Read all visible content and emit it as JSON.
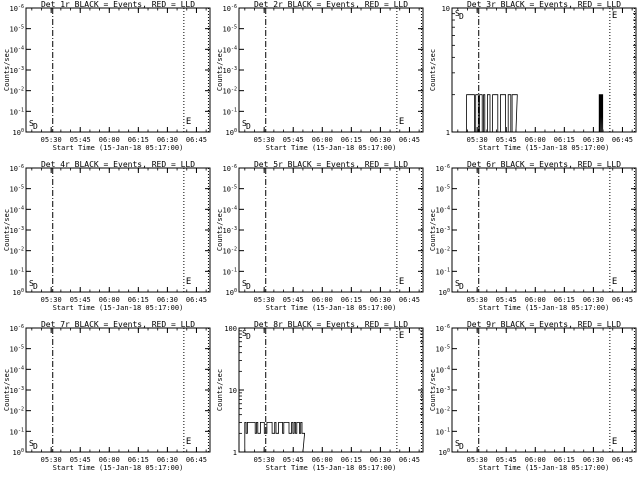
{
  "chart_data": [
    {
      "type": "line",
      "title": "Det 1r BLACK = Events, RED = LLD",
      "xlabel": "Start Time (15-Jan-18 05:17:00)",
      "ylabel": "Counts/sec",
      "x_ticks": [
        "05:30",
        "05:45",
        "06:00",
        "06:15",
        "06:30",
        "06:45"
      ],
      "y_scale": "log",
      "ylim": [
        1,
        1e-06
      ],
      "y_ticks": [
        "10^0",
        "10^-1",
        "10^-2",
        "10^-3",
        "10^-4",
        "10^-5",
        "10^-6"
      ],
      "markers": {
        "start_label": "S",
        "dash_label": "D",
        "end_label": "E"
      },
      "series": []
    },
    {
      "type": "line",
      "title": "Det 2r BLACK = Events, RED = LLD",
      "xlabel": "Start Time (15-Jan-18 05:17:00)",
      "ylabel": "Counts/sec",
      "x_ticks": [
        "05:30",
        "05:45",
        "06:00",
        "06:15",
        "06:30",
        "06:45"
      ],
      "y_scale": "log",
      "ylim": [
        1,
        1e-06
      ],
      "y_ticks": [
        "10^0",
        "10^-1",
        "10^-2",
        "10^-3",
        "10^-4",
        "10^-5",
        "10^-6"
      ],
      "markers": {
        "start_label": "S",
        "dash_label": "D",
        "end_label": "E"
      },
      "series": []
    },
    {
      "type": "line",
      "title": "Det 3r BLACK = Events, RED = LLD",
      "xlabel": "Start Time (15-Jan-18 05:17:00)",
      "ylabel": "Counts/sec",
      "x_ticks": [
        "05:30",
        "05:45",
        "06:00",
        "06:15",
        "06:30",
        "06:45"
      ],
      "y_scale": "log",
      "ylim": [
        1,
        10
      ],
      "y_ticks": [
        "1",
        "10"
      ],
      "markers": {
        "start_label": "S",
        "dash_label": "D",
        "end_label": "E"
      },
      "series": [
        {
          "kind": "burst",
          "level": 2,
          "x_start_min": 5.5,
          "x_end_min": 33,
          "extra_start_min": 76,
          "extra_end_min": 78
        }
      ]
    },
    {
      "type": "line",
      "title": "Det 4r BLACK = Events, RED = LLD",
      "xlabel": "Start Time (15-Jan-18 05:17:00)",
      "ylabel": "Counts/sec",
      "x_ticks": [
        "05:30",
        "05:45",
        "06:00",
        "06:15",
        "06:30",
        "06:45"
      ],
      "y_scale": "log",
      "ylim": [
        1,
        1e-06
      ],
      "y_ticks": [
        "10^0",
        "10^-1",
        "10^-2",
        "10^-3",
        "10^-4",
        "10^-5",
        "10^-6"
      ],
      "markers": {
        "start_label": "S",
        "dash_label": "D",
        "end_label": "E"
      },
      "series": []
    },
    {
      "type": "line",
      "title": "Det 5r BLACK = Events, RED = LLD",
      "xlabel": "Start Time (15-Jan-18 05:17:00)",
      "ylabel": "Counts/sec",
      "x_ticks": [
        "05:30",
        "05:45",
        "06:00",
        "06:15",
        "06:30",
        "06:45"
      ],
      "y_scale": "log",
      "ylim": [
        1,
        1e-06
      ],
      "y_ticks": [
        "10^0",
        "10^-1",
        "10^-2",
        "10^-3",
        "10^-4",
        "10^-5",
        "10^-6"
      ],
      "markers": {
        "start_label": "S",
        "dash_label": "D",
        "end_label": "E"
      },
      "series": []
    },
    {
      "type": "line",
      "title": "Det 6r BLACK = Events, RED = LLD",
      "xlabel": "Start Time (15-Jan-18 05:17:00)",
      "ylabel": "Counts/sec",
      "x_ticks": [
        "05:30",
        "05:45",
        "06:00",
        "06:15",
        "06:30",
        "06:45"
      ],
      "y_scale": "log",
      "ylim": [
        1,
        1e-06
      ],
      "y_ticks": [
        "10^0",
        "10^-1",
        "10^-2",
        "10^-3",
        "10^-4",
        "10^-5",
        "10^-6"
      ],
      "markers": {
        "start_label": "S",
        "dash_label": "D",
        "end_label": "E"
      },
      "series": []
    },
    {
      "type": "line",
      "title": "Det 7r BLACK = Events, RED = LLD",
      "xlabel": "Start Time (15-Jan-18 05:17:00)",
      "ylabel": "Counts/sec",
      "x_ticks": [
        "05:30",
        "05:45",
        "06:00",
        "06:15",
        "06:30",
        "06:45"
      ],
      "y_scale": "log",
      "ylim": [
        1,
        1e-06
      ],
      "y_ticks": [
        "10^0",
        "10^-1",
        "10^-2",
        "10^-3",
        "10^-4",
        "10^-5",
        "10^-6"
      ],
      "markers": {
        "start_label": "S",
        "dash_label": "D",
        "end_label": "E"
      },
      "series": []
    },
    {
      "type": "line",
      "title": "Det 8r BLACK = Events, RED = LLD",
      "xlabel": "Start Time (15-Jan-18 05:17:00)",
      "ylabel": "Counts/sec",
      "x_ticks": [
        "05:30",
        "05:45",
        "06:00",
        "06:15",
        "06:30",
        "06:45"
      ],
      "y_scale": "log",
      "ylim": [
        1,
        100
      ],
      "y_ticks": [
        "1",
        "10",
        "100"
      ],
      "markers": {
        "start_label": "S",
        "dash_label": "D",
        "end_label": "E"
      },
      "series": [
        {
          "kind": "burst",
          "level": 2,
          "level_high": 3,
          "x_start_min": 3,
          "x_end_min": 33
        }
      ]
    },
    {
      "type": "line",
      "title": "Det 9r BLACK = Events, RED = LLD",
      "xlabel": "Start Time (15-Jan-18 05:17:00)",
      "ylabel": "Counts/sec",
      "x_ticks": [
        "05:30",
        "05:45",
        "06:00",
        "06:15",
        "06:30",
        "06:45"
      ],
      "y_scale": "log",
      "ylim": [
        1,
        1e-06
      ],
      "y_ticks": [
        "10^0",
        "10^-1",
        "10^-2",
        "10^-3",
        "10^-4",
        "10^-5",
        "10^-6"
      ],
      "markers": {
        "start_label": "S",
        "dash_label": "D",
        "end_label": "E"
      },
      "series": []
    }
  ]
}
